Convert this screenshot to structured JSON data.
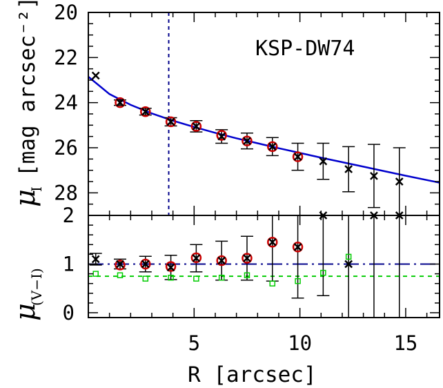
{
  "chart_data": [
    {
      "type": "scatter",
      "panel": "top",
      "title": "KSP-DW74",
      "ylabel_symbol": "μ",
      "ylabel_subscript": "I",
      "ylabel_unit": "[mag arcsec⁻²]",
      "ylim": [
        29,
        20
      ],
      "xlim": [
        0,
        16.6
      ],
      "yticks": [
        "20",
        "22",
        "24",
        "26",
        "28"
      ],
      "vline_x": 3.8,
      "fit_model": {
        "kind": "exponential-ish",
        "points_x": [
          0,
          1,
          2,
          3,
          4,
          5,
          6,
          7,
          8,
          9,
          10,
          11,
          12,
          13,
          14,
          15,
          16.6
        ],
        "points_y": [
          22.85,
          23.62,
          24.1,
          24.48,
          24.8,
          25.08,
          25.34,
          25.58,
          25.8,
          26.02,
          26.23,
          26.44,
          26.64,
          26.84,
          27.04,
          27.24,
          27.55
        ]
      },
      "series": [
        {
          "marker": "cross",
          "color": "#000000",
          "x": [
            0.35,
            1.5,
            2.7,
            3.9,
            5.1,
            6.3,
            7.5,
            8.7,
            9.9,
            11.1,
            12.3,
            13.5,
            14.7
          ],
          "y": [
            22.8,
            24.0,
            24.4,
            24.85,
            25.05,
            25.5,
            25.7,
            25.95,
            26.4,
            26.6,
            26.95,
            27.25,
            27.5
          ],
          "yerr": [
            0,
            0.12,
            0.15,
            0.18,
            0.25,
            0.3,
            0.35,
            0.4,
            0.6,
            0.8,
            1.0,
            1.4,
            1.5
          ]
        },
        {
          "marker": "circle",
          "color": "#cc0000",
          "x": [
            1.5,
            2.7,
            3.9,
            5.1,
            6.3,
            7.5,
            8.7,
            9.9
          ],
          "y": [
            24.0,
            24.4,
            24.85,
            25.05,
            25.45,
            25.7,
            25.95,
            26.4
          ]
        }
      ]
    },
    {
      "type": "scatter",
      "panel": "bottom",
      "ylabel_symbol": "μ",
      "ylabel_subscript": "(V−I)",
      "xlabel": "R [arcsec]",
      "xlim": [
        0,
        16.6
      ],
      "ylim": [
        -0.1,
        2.0
      ],
      "xticks": [
        "5",
        "10",
        "15"
      ],
      "yticks": [
        "0",
        "1",
        "2"
      ],
      "hline_blue": 1.0,
      "hline_green": 0.75,
      "series": [
        {
          "marker": "cross",
          "color": "#000000",
          "x": [
            0.35,
            1.5,
            2.7,
            3.9,
            5.1,
            6.3,
            7.5,
            8.7,
            9.9,
            11.1,
            12.3,
            13.5,
            14.7
          ],
          "y": [
            1.1,
            1.0,
            1.0,
            0.93,
            1.12,
            1.07,
            1.12,
            1.45,
            1.35,
            2.0,
            1.0,
            2.0,
            2.0
          ],
          "yerr": [
            0.12,
            0.1,
            0.16,
            0.25,
            0.28,
            0.4,
            0.45,
            0.8,
            1.05,
            1.65,
            2.5,
            2.5,
            2.5
          ]
        },
        {
          "marker": "circle",
          "color": "#cc0000",
          "x": [
            1.5,
            2.7,
            3.9,
            5.1,
            6.3,
            7.5,
            8.7,
            9.9
          ],
          "y": [
            0.98,
            1.0,
            0.95,
            1.13,
            1.07,
            1.12,
            1.45,
            1.35
          ]
        },
        {
          "marker": "square",
          "color": "#00cc00",
          "x": [
            0.35,
            1.5,
            2.7,
            3.9,
            5.1,
            6.3,
            7.5,
            8.7,
            9.9,
            11.1,
            12.3
          ],
          "y": [
            0.8,
            0.77,
            0.7,
            0.72,
            0.7,
            0.72,
            0.77,
            0.6,
            0.65,
            0.82,
            1.15
          ]
        }
      ]
    }
  ]
}
